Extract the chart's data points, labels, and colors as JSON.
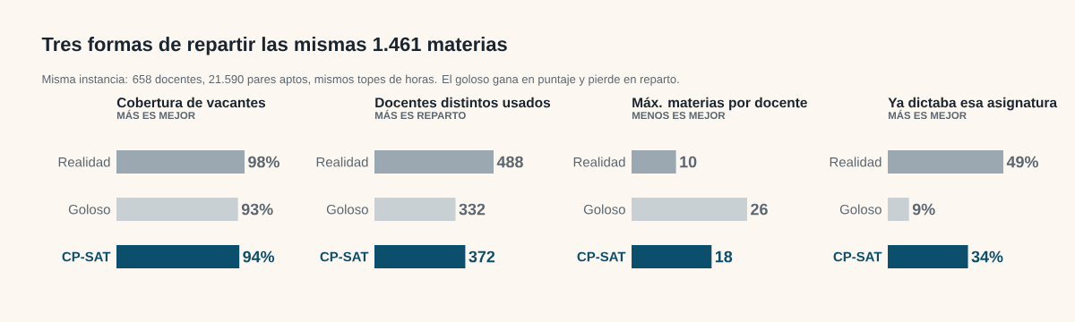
{
  "chart_data": [
    {
      "type": "other",
      "title": "Tres formas de repartir las mismas 1.461 materias",
      "subtitle": "Misma instancia: 658 docentes, 21.590 pares aptos, mismos topes de horas. El goloso gana en puntaje y pierde en reparto."
    },
    {
      "type": "bar",
      "orientation": "horizontal",
      "title": "Cobertura de vacantes",
      "subtitle": "MÁS ES MEJOR",
      "categories": [
        "Realidad",
        "Goloso",
        "CP-SAT"
      ],
      "values": [
        98,
        93,
        94
      ],
      "value_labels": [
        "98%",
        "93%",
        "94%"
      ],
      "colors": [
        "#9ba8b1",
        "#c8d0d4",
        "#0b4f6c"
      ]
    },
    {
      "type": "bar",
      "orientation": "horizontal",
      "title": "Docentes distintos usados",
      "subtitle": "MÁS ES REPARTO",
      "categories": [
        "Realidad",
        "Goloso",
        "CP-SAT"
      ],
      "values": [
        488,
        332,
        372
      ],
      "value_labels": [
        "488",
        "332",
        "372"
      ],
      "colors": [
        "#9ba8b1",
        "#c8d0d4",
        "#0b4f6c"
      ]
    },
    {
      "type": "bar",
      "orientation": "horizontal",
      "title": "Máx. materias por docente",
      "subtitle": "MENOS ES MEJOR",
      "categories": [
        "Realidad",
        "Goloso",
        "CP-SAT"
      ],
      "values": [
        10,
        26,
        18
      ],
      "value_labels": [
        "10",
        "26",
        "18"
      ],
      "colors": [
        "#9ba8b1",
        "#c8d0d4",
        "#0b4f6c"
      ]
    },
    {
      "type": "bar",
      "orientation": "horizontal",
      "title": "Ya dictaba esa asignatura",
      "subtitle": "MÁS ES MEJOR",
      "categories": [
        "Realidad",
        "Goloso",
        "CP-SAT"
      ],
      "values": [
        49,
        9,
        34
      ],
      "value_labels": [
        "49%",
        "9%",
        "34%"
      ],
      "colors": [
        "#9ba8b1",
        "#c8d0d4",
        "#0b4f6c"
      ]
    }
  ]
}
